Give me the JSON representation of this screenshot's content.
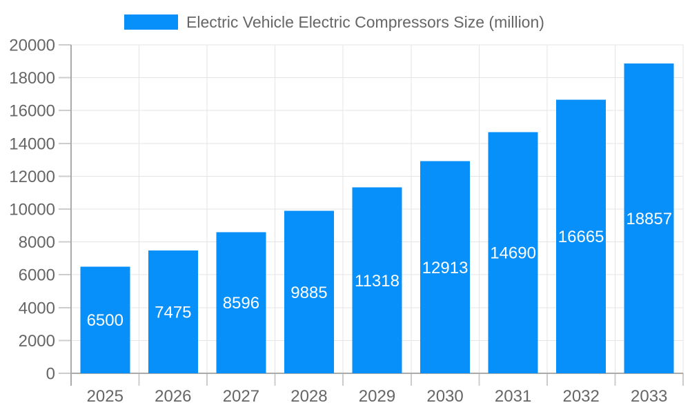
{
  "chart_data": {
    "type": "bar",
    "title": "Electric Vehicle Electric Compressors Size (million)",
    "categories": [
      "2025",
      "2026",
      "2027",
      "2028",
      "2029",
      "2030",
      "2031",
      "2032",
      "2033"
    ],
    "values": [
      6500,
      7475,
      8596,
      9885,
      11318,
      12913,
      14690,
      16665,
      18857
    ],
    "xlabel": "",
    "ylabel": "",
    "ylim": [
      0,
      20000
    ],
    "yticks": [
      0,
      2000,
      4000,
      6000,
      8000,
      10000,
      12000,
      14000,
      16000,
      18000,
      20000
    ],
    "grid": true,
    "legend_position": "top",
    "colors": {
      "bar": "#0890fa",
      "value_label": "#ffffff",
      "axis_text": "#666666",
      "axis_line": "#aaaaaa",
      "tick": "#cccccc",
      "grid": "#e4e4e4",
      "background": "#ffffff"
    }
  }
}
